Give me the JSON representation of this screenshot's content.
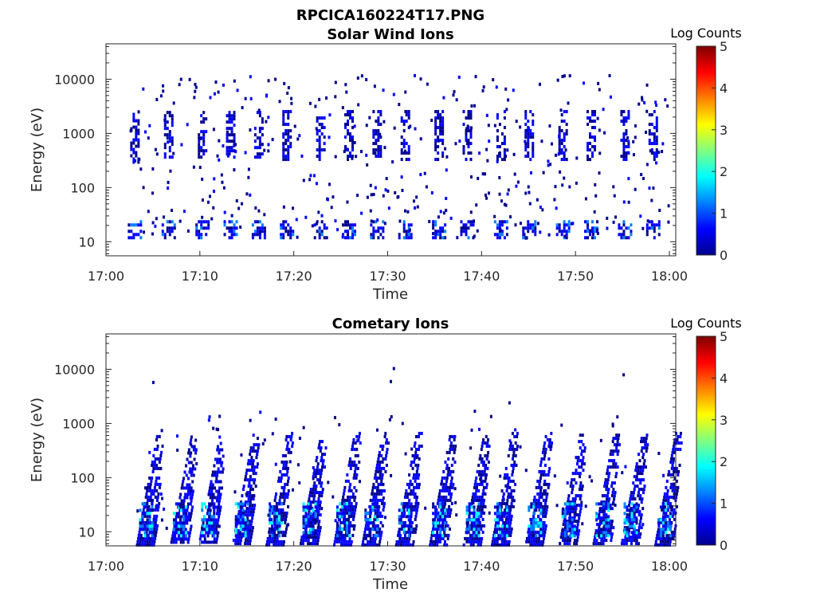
{
  "figure_title": "RPCICA160224T17.PNG",
  "colormap": [
    "#00008f",
    "#0000ff",
    "#0080ff",
    "#00ffff",
    "#80ff80",
    "#ffff00",
    "#ff8000",
    "#ff0000",
    "#800000"
  ],
  "chart_data": [
    {
      "type": "heatmap",
      "title": "Solar Wind Ions",
      "xlabel": "Time",
      "ylabel": "Energy (eV)",
      "yscale": "log",
      "ylim": [
        5.5,
        45000
      ],
      "x_ticks": [
        "17:00",
        "17:10",
        "17:20",
        "17:30",
        "17:40",
        "17:50",
        "18:00"
      ],
      "y_ticks": [
        "10",
        "100",
        "1000",
        "10000"
      ],
      "colorbar": {
        "label": "Log Counts",
        "range": [
          0,
          5
        ],
        "ticks": [
          "0",
          "1",
          "2",
          "3",
          "4",
          "5"
        ]
      },
      "bursts": [
        {
          "t": 17.05,
          "e_top": 2400,
          "e_bot": 300
        },
        {
          "t": 17.11,
          "e_top": 2600,
          "e_bot": 350
        },
        {
          "t": 17.17,
          "e_top": 2600,
          "e_bot": 350
        },
        {
          "t": 17.22,
          "e_top": 2600,
          "e_bot": 350
        },
        {
          "t": 17.27,
          "e_top": 2600,
          "e_bot": 350
        },
        {
          "t": 17.32,
          "e_top": 2700,
          "e_bot": 350
        },
        {
          "t": 17.38,
          "e_top": 2700,
          "e_bot": 350
        },
        {
          "t": 17.43,
          "e_top": 2700,
          "e_bot": 350
        },
        {
          "t": 17.48,
          "e_top": 2700,
          "e_bot": 350
        },
        {
          "t": 17.53,
          "e_top": 2700,
          "e_bot": 350
        },
        {
          "t": 17.59,
          "e_top": 2700,
          "e_bot": 350
        },
        {
          "t": 17.64,
          "e_top": 2700,
          "e_bot": 350
        },
        {
          "t": 17.7,
          "e_top": 2700,
          "e_bot": 350
        },
        {
          "t": 17.75,
          "e_top": 2700,
          "e_bot": 350
        },
        {
          "t": 17.81,
          "e_top": 2700,
          "e_bot": 350
        },
        {
          "t": 17.86,
          "e_top": 2700,
          "e_bot": 350
        },
        {
          "t": 17.92,
          "e_top": 2700,
          "e_bot": 350
        },
        {
          "t": 17.97,
          "e_top": 2700,
          "e_bot": 350
        }
      ],
      "low_energy_band": {
        "e_top": 25,
        "e_bot": 12,
        "max_level": 1.2
      }
    },
    {
      "type": "heatmap",
      "title": "Cometary Ions",
      "xlabel": "Time",
      "ylabel": "Energy (eV)",
      "yscale": "log",
      "ylim": [
        5.5,
        45000
      ],
      "x_ticks": [
        "17:00",
        "17:10",
        "17:20",
        "17:30",
        "17:40",
        "17:50",
        "18:00"
      ],
      "y_ticks": [
        "10",
        "100",
        "1000",
        "10000"
      ],
      "colorbar": {
        "label": "Log Counts",
        "range": [
          0,
          5
        ],
        "ticks": [
          "0",
          "1",
          "2",
          "3",
          "4",
          "5"
        ]
      },
      "bursts": [
        {
          "t": 17.07,
          "e_top": 700,
          "e_bot": 6
        },
        {
          "t": 17.13,
          "e_top": 600,
          "e_bot": 6
        },
        {
          "t": 17.18,
          "e_top": 600,
          "e_bot": 6
        },
        {
          "t": 17.24,
          "e_top": 650,
          "e_bot": 6
        },
        {
          "t": 17.3,
          "e_top": 700,
          "e_bot": 6
        },
        {
          "t": 17.36,
          "e_top": 650,
          "e_bot": 6
        },
        {
          "t": 17.42,
          "e_top": 700,
          "e_bot": 6
        },
        {
          "t": 17.47,
          "e_top": 700,
          "e_bot": 6
        },
        {
          "t": 17.53,
          "e_top": 700,
          "e_bot": 6
        },
        {
          "t": 17.59,
          "e_top": 700,
          "e_bot": 6
        },
        {
          "t": 17.65,
          "e_top": 700,
          "e_bot": 6
        },
        {
          "t": 17.7,
          "e_top": 700,
          "e_bot": 6
        },
        {
          "t": 17.76,
          "e_top": 700,
          "e_bot": 6
        },
        {
          "t": 17.82,
          "e_top": 650,
          "e_bot": 6
        },
        {
          "t": 17.88,
          "e_top": 650,
          "e_bot": 6
        },
        {
          "t": 17.93,
          "e_top": 650,
          "e_bot": 6
        },
        {
          "t": 17.99,
          "e_top": 700,
          "e_bot": 6
        }
      ],
      "low_energy_band": {
        "e_top": 35,
        "e_bot": 9,
        "max_level": 2.0
      }
    }
  ]
}
